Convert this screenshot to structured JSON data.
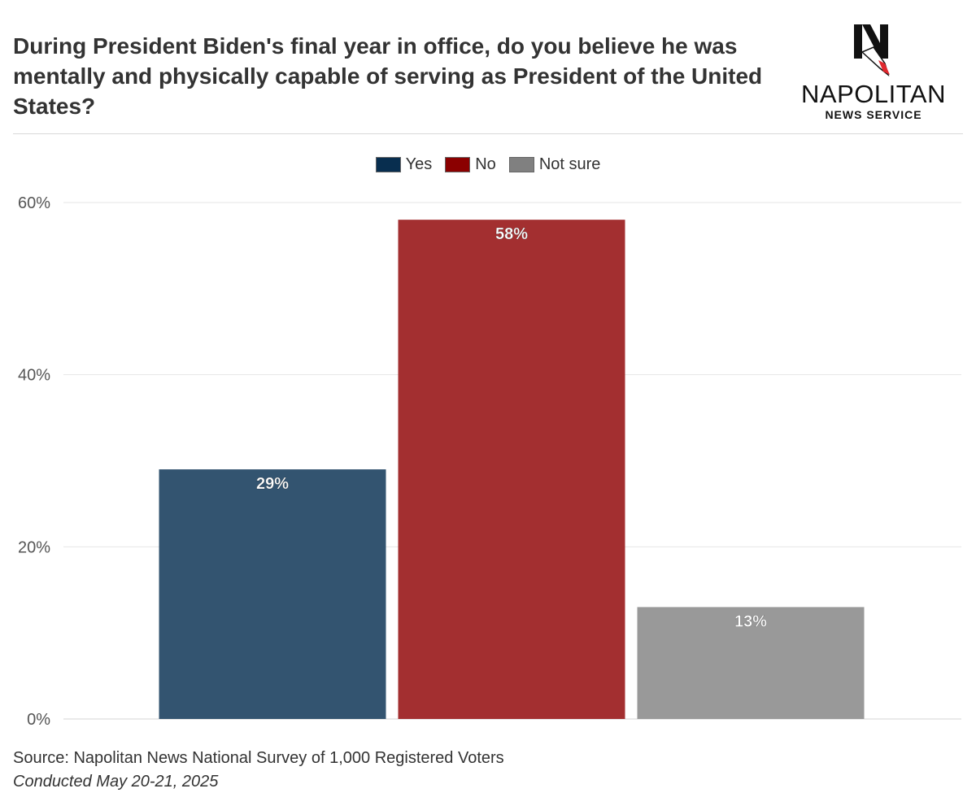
{
  "header": {
    "title": "During President Biden's final year in office, do you believe he was mentally and physically capable of serving as President of the United States?"
  },
  "logo": {
    "name": "NAPOLITAN",
    "subtitle": "NEWS SERVICE",
    "mark_letter": "N",
    "mark_color": "#111111",
    "accent_color": "#e0282e"
  },
  "legend": [
    {
      "label": "Yes",
      "color": "#082e4f"
    },
    {
      "label": "No",
      "color": "#8b0000"
    },
    {
      "label": "Not sure",
      "color": "#808080"
    }
  ],
  "chart_data": {
    "type": "bar",
    "categories": [
      "Yes",
      "No",
      "Not sure"
    ],
    "values": [
      29,
      58,
      13
    ],
    "data_labels": [
      "29%",
      "58%",
      "13%"
    ],
    "colors": [
      "#335470",
      "#a32f30",
      "#999999"
    ],
    "ylim": [
      0,
      60
    ],
    "yticks": [
      0,
      20,
      40,
      60
    ],
    "ytick_labels": [
      "0%",
      "20%",
      "40%",
      "60%"
    ],
    "grid": true,
    "legend_position": "top-center",
    "xlabel": "",
    "ylabel": ""
  },
  "footer": {
    "source": "Source: Napolitan News National Survey of 1,000 Registered Voters",
    "date": "Conducted May 20-21, 2025"
  }
}
